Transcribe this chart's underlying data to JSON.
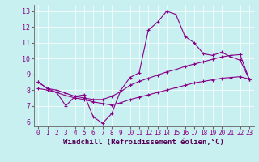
{
  "xlabel": "Windchill (Refroidissement éolien,°C)",
  "ylabel": "",
  "background_color": "#c8f0f0",
  "line_color": "#880088",
  "xlim": [
    -0.5,
    23.5
  ],
  "ylim": [
    5.7,
    13.4
  ],
  "xticks": [
    0,
    1,
    2,
    3,
    4,
    5,
    6,
    7,
    8,
    9,
    10,
    11,
    12,
    13,
    14,
    15,
    16,
    17,
    18,
    19,
    20,
    21,
    22,
    23
  ],
  "yticks": [
    6,
    7,
    8,
    9,
    10,
    11,
    12,
    13
  ],
  "line1_x": [
    0,
    1,
    2,
    3,
    4,
    5,
    6,
    7,
    8,
    9,
    10,
    11,
    12,
    13,
    14,
    15,
    16,
    17,
    18,
    19,
    20,
    21,
    22,
    23
  ],
  "line1_y": [
    8.5,
    8.1,
    7.85,
    7.0,
    7.6,
    7.7,
    6.3,
    5.9,
    6.5,
    8.0,
    8.8,
    9.1,
    11.8,
    12.3,
    13.0,
    12.8,
    11.4,
    11.0,
    10.3,
    10.2,
    10.4,
    10.1,
    9.9,
    8.7
  ],
  "line2_x": [
    0,
    1,
    2,
    3,
    4,
    5,
    6,
    7,
    8,
    9,
    10,
    11,
    12,
    13,
    14,
    15,
    16,
    17,
    18,
    19,
    20,
    21,
    22,
    23
  ],
  "line2_y": [
    8.5,
    8.1,
    8.0,
    7.8,
    7.6,
    7.5,
    7.4,
    7.4,
    7.6,
    7.9,
    8.3,
    8.55,
    8.75,
    8.95,
    9.15,
    9.3,
    9.5,
    9.65,
    9.8,
    9.95,
    10.1,
    10.2,
    10.25,
    8.7
  ],
  "line3_x": [
    0,
    1,
    2,
    3,
    4,
    5,
    6,
    7,
    8,
    9,
    10,
    11,
    12,
    13,
    14,
    15,
    16,
    17,
    18,
    19,
    20,
    21,
    22,
    23
  ],
  "line3_y": [
    8.1,
    8.0,
    7.85,
    7.65,
    7.5,
    7.4,
    7.25,
    7.15,
    7.05,
    7.2,
    7.4,
    7.55,
    7.7,
    7.85,
    8.0,
    8.15,
    8.3,
    8.45,
    8.55,
    8.65,
    8.75,
    8.8,
    8.85,
    8.7
  ]
}
